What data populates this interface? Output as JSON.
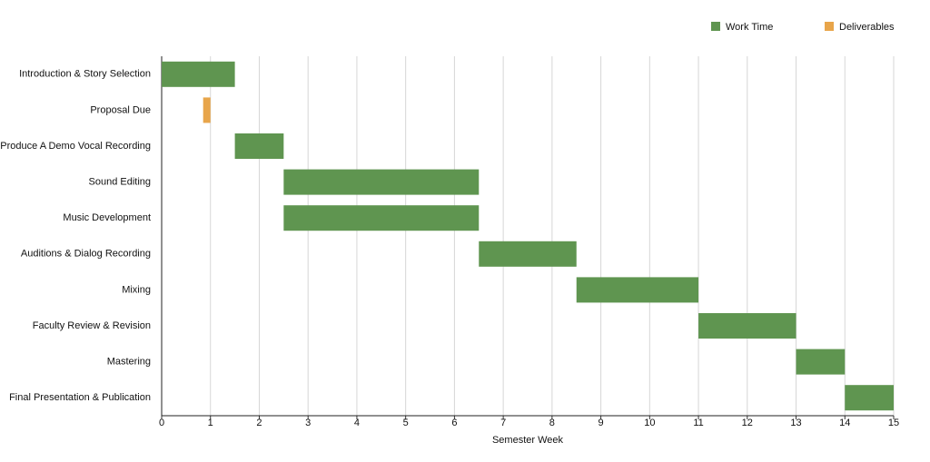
{
  "chart_data": {
    "type": "gantt",
    "x_label": "Semester Week",
    "categories": [
      "Introduction & Story Selection",
      "Proposal Due",
      "Produce A Demo Vocal Recording",
      "Sound Editing",
      "Music Development",
      "Auditions & Dialog Recording",
      "Mixing",
      "Faculty Review & Revision",
      "Mastering",
      "Final Presentation & Publication"
    ],
    "series": [
      {
        "name": "Work Time",
        "color": "#5f9550",
        "start": [
          0,
          null,
          1.5,
          2.5,
          2.5,
          6.5,
          8.5,
          11,
          13,
          14
        ],
        "end": [
          1.5,
          null,
          2.5,
          6.5,
          6.5,
          8.5,
          11,
          13,
          14,
          15
        ]
      },
      {
        "name": "Deliverables",
        "color": "#e8a54a",
        "start": [
          null,
          0.85,
          null,
          null,
          null,
          null,
          null,
          null,
          null,
          null
        ],
        "end": [
          null,
          1,
          null,
          null,
          null,
          null,
          null,
          null,
          null,
          null
        ]
      }
    ],
    "xlim": [
      0,
      15
    ],
    "xticks": [
      0,
      1,
      2,
      3,
      4,
      5,
      6,
      7,
      8,
      9,
      10,
      11,
      12,
      13,
      14,
      15
    ],
    "grid": true,
    "legend": "top-right"
  }
}
